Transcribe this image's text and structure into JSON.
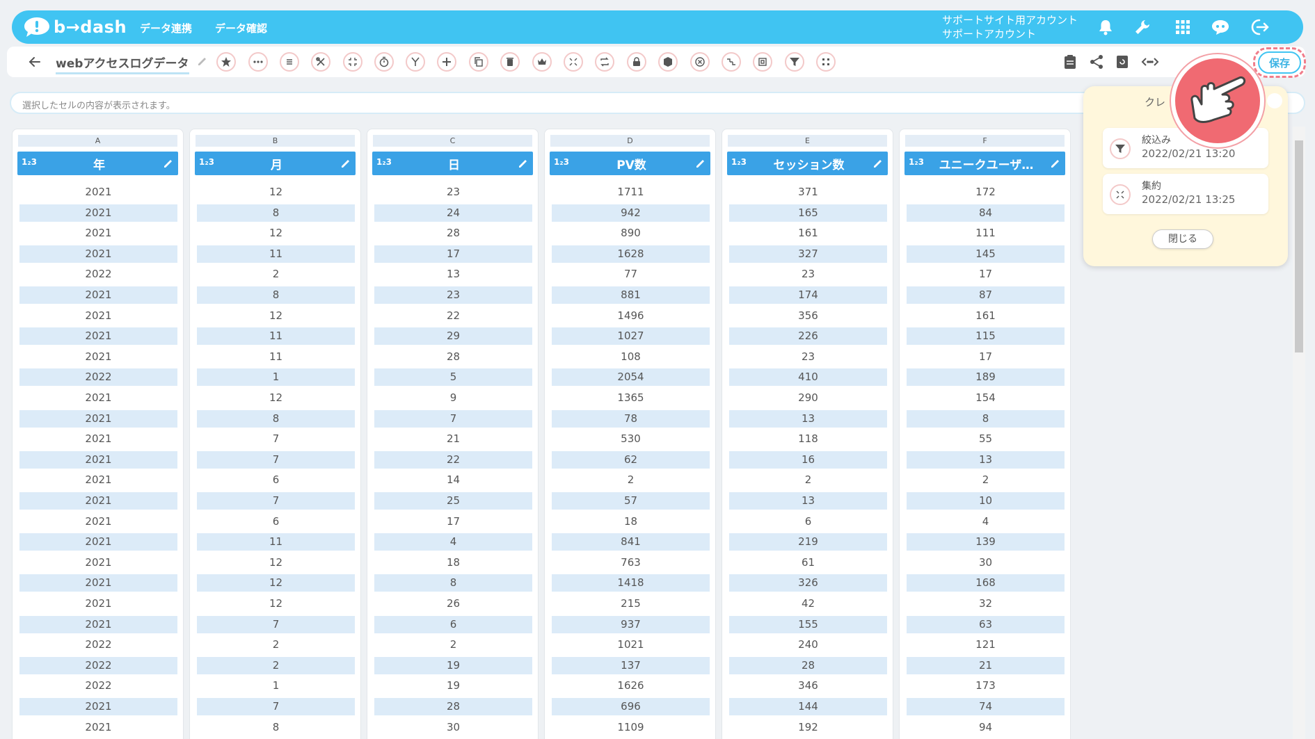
{
  "header": {
    "logo_text": "b→dash",
    "nav": [
      "データ連携",
      "データ確認"
    ],
    "account_line1": "サポートサイト用アカウント",
    "account_line2": "サポートアカウント"
  },
  "toolbar": {
    "title": "webアクセスログデータ",
    "save_label": "保存",
    "tools": [
      "star-icon",
      "more-icon",
      "list-icon",
      "tools-icon",
      "compress-icon",
      "timer-icon",
      "merge-icon",
      "add-icon",
      "copy-icon",
      "delete-icon",
      "crown-icon",
      "aggregate-icon",
      "repeat-icon",
      "lock-icon",
      "box-icon",
      "close-circle-icon",
      "transform-icon",
      "frame-icon",
      "filter-icon",
      "grid-icon"
    ],
    "right_tools": [
      "clipboard-icon",
      "share-icon",
      "refresh-icon",
      "code-icon"
    ]
  },
  "cell_display": {
    "placeholder": "選択したセルの内容が表示されます。"
  },
  "grid": {
    "columns": [
      {
        "letter": "A",
        "type": "1₂3",
        "name": "年"
      },
      {
        "letter": "B",
        "type": "1₂3",
        "name": "月"
      },
      {
        "letter": "C",
        "type": "1₂3",
        "name": "日"
      },
      {
        "letter": "D",
        "type": "1₂3",
        "name": "PV数"
      },
      {
        "letter": "E",
        "type": "1₂3",
        "name": "セッション数"
      },
      {
        "letter": "F",
        "type": "1₂3",
        "name": "ユニークユーザ…"
      }
    ],
    "rows": [
      [
        "2021",
        "12",
        "23",
        "1711",
        "371",
        "172"
      ],
      [
        "2021",
        "8",
        "24",
        "942",
        "165",
        "84"
      ],
      [
        "2021",
        "12",
        "28",
        "890",
        "161",
        "111"
      ],
      [
        "2021",
        "11",
        "17",
        "1628",
        "327",
        "145"
      ],
      [
        "2022",
        "2",
        "13",
        "77",
        "23",
        "17"
      ],
      [
        "2021",
        "8",
        "23",
        "881",
        "174",
        "87"
      ],
      [
        "2021",
        "12",
        "22",
        "1496",
        "356",
        "161"
      ],
      [
        "2021",
        "11",
        "29",
        "1027",
        "226",
        "115"
      ],
      [
        "2021",
        "11",
        "28",
        "108",
        "23",
        "17"
      ],
      [
        "2022",
        "1",
        "5",
        "2054",
        "410",
        "189"
      ],
      [
        "2021",
        "12",
        "9",
        "1365",
        "290",
        "154"
      ],
      [
        "2021",
        "8",
        "7",
        "78",
        "13",
        "8"
      ],
      [
        "2021",
        "7",
        "21",
        "530",
        "118",
        "55"
      ],
      [
        "2021",
        "7",
        "22",
        "62",
        "16",
        "13"
      ],
      [
        "2021",
        "6",
        "14",
        "2",
        "2",
        "2"
      ],
      [
        "2021",
        "7",
        "25",
        "57",
        "13",
        "10"
      ],
      [
        "2021",
        "6",
        "17",
        "18",
        "6",
        "4"
      ],
      [
        "2021",
        "11",
        "4",
        "841",
        "219",
        "139"
      ],
      [
        "2021",
        "12",
        "18",
        "763",
        "61",
        "30"
      ],
      [
        "2021",
        "12",
        "8",
        "1418",
        "326",
        "168"
      ],
      [
        "2021",
        "12",
        "26",
        "215",
        "42",
        "32"
      ],
      [
        "2021",
        "7",
        "6",
        "937",
        "155",
        "63"
      ],
      [
        "2022",
        "2",
        "2",
        "1021",
        "240",
        "121"
      ],
      [
        "2022",
        "2",
        "19",
        "137",
        "28",
        "21"
      ],
      [
        "2022",
        "1",
        "19",
        "1626",
        "346",
        "173"
      ],
      [
        "2021",
        "7",
        "28",
        "696",
        "144",
        "74"
      ],
      [
        "2021",
        "8",
        "30",
        "1109",
        "192",
        "94"
      ]
    ]
  },
  "history_popup": {
    "title": "クレ",
    "items": [
      {
        "label": "絞込み",
        "timestamp": "2022/02/21 13:20",
        "icon": "filter-icon"
      },
      {
        "label": "集約",
        "timestamp": "2022/02/21 13:25",
        "icon": "aggregate-icon"
      }
    ],
    "close_label": "閉じる"
  },
  "colors": {
    "brand": "#40c4f2",
    "column_header": "#3aa2e6",
    "row_alt": "#dcebf8",
    "accent_pink": "#f06a72"
  }
}
